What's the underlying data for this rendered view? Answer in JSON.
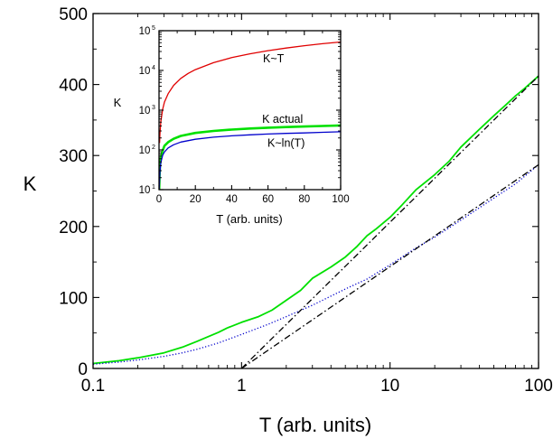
{
  "chart_data": [
    {
      "type": "line",
      "x_scale": "log",
      "xlabel": "T (arb. units)",
      "ylabel": "K",
      "xlim": [
        0.1,
        100
      ],
      "ylim": [
        0,
        500
      ],
      "xticks": [
        0.1,
        1,
        10,
        100
      ],
      "xtick_labels": [
        "0.1",
        "1",
        "10",
        "100"
      ],
      "yticks": [
        0,
        100,
        200,
        300,
        400,
        500
      ],
      "ytick_labels": [
        "0",
        "100",
        "200",
        "300",
        "400",
        "500"
      ],
      "grid": false,
      "legend": "none",
      "series": [
        {
          "color": "#00e000",
          "style": "solid",
          "x": [
            0.1,
            0.15,
            0.2,
            0.3,
            0.4,
            0.5,
            0.6,
            0.7,
            0.8,
            1.0,
            1.3,
            1.6,
            2.0,
            2.5,
            3.0,
            4.0,
            5.0,
            6.0,
            7.0,
            8.0,
            10,
            12,
            15,
            20,
            25,
            30,
            40,
            50,
            60,
            70,
            80,
            100
          ],
          "y": [
            7,
            11,
            15,
            22,
            30,
            38,
            45,
            51,
            57,
            65,
            73,
            82,
            96,
            110,
            127,
            143,
            157,
            172,
            187,
            196,
            213,
            230,
            252,
            273,
            292,
            312,
            337,
            356,
            371,
            384,
            394,
            412
          ]
        },
        {
          "color": "#0000cc",
          "style": "dotted",
          "x": [
            0.1,
            0.15,
            0.2,
            0.3,
            0.4,
            0.5,
            0.7,
            1.0,
            1.5,
            2.0,
            3.0,
            5.0,
            7.0,
            10,
            15,
            20,
            30,
            50,
            70,
            100
          ],
          "y": [
            6,
            9,
            12,
            17,
            22,
            27,
            36,
            48,
            62,
            73,
            89,
            112,
            126,
            146,
            170,
            185,
            209,
            240,
            260,
            287
          ]
        },
        {
          "color": "#000000",
          "style": "dash-dot",
          "x": [
            1,
            100
          ],
          "y": [
            0,
            287
          ]
        },
        {
          "color": "#000000",
          "style": "dash-dot",
          "x": [
            1,
            100
          ],
          "y": [
            0,
            412
          ]
        }
      ]
    },
    {
      "type": "line",
      "y_scale": "log",
      "xlabel": "T (arb. units)",
      "ylabel": "K",
      "xlim": [
        0,
        100
      ],
      "ylim": [
        10,
        100000
      ],
      "xticks": [
        0,
        20,
        40,
        60,
        80,
        100
      ],
      "xtick_labels": [
        "0",
        "20",
        "40",
        "60",
        "80",
        "100"
      ],
      "yticks": [
        10,
        100,
        1000,
        10000,
        100000
      ],
      "ytick_labels": [
        {
          "base": "10",
          "exp": "1"
        },
        {
          "base": "10",
          "exp": "2"
        },
        {
          "base": "10",
          "exp": "3"
        },
        {
          "base": "10",
          "exp": "4"
        },
        {
          "base": "10",
          "exp": "5"
        }
      ],
      "grid": false,
      "annotations": [
        {
          "text": "K~T",
          "x": 63,
          "y": 16000
        },
        {
          "text": "K actual",
          "x": 68,
          "y": 480
        },
        {
          "text": "K~ln(T)",
          "x": 70,
          "y": 120
        }
      ],
      "series": [
        {
          "label": "K~T",
          "color": "#e00000",
          "style": "solid",
          "x": [
            0.3,
            0.5,
            1,
            2,
            3,
            5,
            8,
            12,
            16,
            20,
            30,
            40,
            50,
            60,
            70,
            80,
            90,
            100
          ],
          "y": [
            150,
            250,
            520,
            1050,
            1600,
            2600,
            4200,
            6300,
            8400,
            10500,
            15700,
            21000,
            26200,
            31500,
            36700,
            42000,
            47000,
            52000
          ]
        },
        {
          "label": "K actual",
          "color": "#00e000",
          "style": "solid",
          "x": [
            0.1,
            0.3,
            0.5,
            1,
            2,
            3,
            5,
            8,
            12,
            20,
            30,
            40,
            50,
            60,
            70,
            80,
            90,
            100
          ],
          "y": [
            7,
            22,
            38,
            65,
            96,
            127,
            157,
            190,
            225,
            268,
            300,
            325,
            345,
            362,
            375,
            388,
            400,
            412
          ]
        },
        {
          "label": "K~ln(T)",
          "color": "#0000cc",
          "style": "solid",
          "x": [
            0.1,
            0.3,
            0.5,
            1,
            2,
            3,
            5,
            8,
            12,
            20,
            30,
            40,
            50,
            60,
            70,
            80,
            90,
            100
          ],
          "y": [
            6,
            17,
            27,
            48,
            73,
            89,
            112,
            135,
            158,
            185,
            209,
            226,
            240,
            251,
            260,
            268,
            278,
            287
          ]
        }
      ]
    }
  ]
}
